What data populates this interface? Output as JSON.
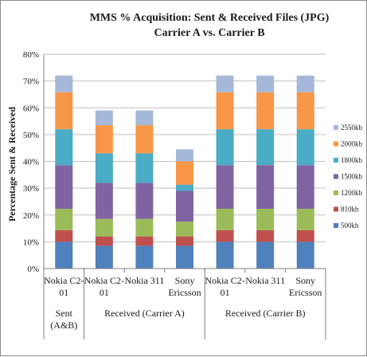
{
  "chart_data": {
    "type": "bar",
    "stacked": true,
    "title_line1": "MMS % Acquisition: Sent & Received Files (JPG)",
    "title_line2": "Carrier A vs. Carrier B",
    "ylabel": "Percentage Sent & Received",
    "ylim": [
      0,
      80
    ],
    "yticks": [
      "0%",
      "10%",
      "20%",
      "30%",
      "40%",
      "50%",
      "60%",
      "70%",
      "80%"
    ],
    "grid": true,
    "legend_position": "right",
    "categories": [
      [
        "Nokia C2-",
        "01"
      ],
      [
        "Nokia C2-",
        "01"
      ],
      [
        "Nokia 311"
      ],
      [
        "Sony",
        "Ericsson"
      ],
      [
        "Nokia C2-",
        "01"
      ],
      [
        "Nokia 311"
      ],
      [
        "Sony",
        "Ericsson"
      ]
    ],
    "groups": [
      {
        "label": [
          "Sent",
          "(A&B)"
        ],
        "start": 0,
        "count": 1
      },
      {
        "label": [
          "Received (Carrier A)"
        ],
        "start": 1,
        "count": 3
      },
      {
        "label": [
          "Received (Carrier B)"
        ],
        "start": 4,
        "count": 3
      }
    ],
    "series": [
      {
        "name": "500kb",
        "color": "#4f81bd",
        "values": [
          10,
          8.5,
          8.5,
          8.5,
          10,
          10,
          10
        ]
      },
      {
        "name": "810kb",
        "color": "#c0504d",
        "values": [
          4.3,
          3.5,
          3.5,
          3.5,
          4.3,
          4.3,
          4.3
        ]
      },
      {
        "name": "1200kb",
        "color": "#9bbb59",
        "values": [
          8,
          6.5,
          6.5,
          5.5,
          8,
          8,
          8
        ]
      },
      {
        "name": "1500kb",
        "color": "#8064a2",
        "values": [
          16.3,
          13.5,
          13.5,
          11.5,
          16.3,
          16.3,
          16.3
        ]
      },
      {
        "name": "1800kb",
        "color": "#4bacc6",
        "values": [
          13.4,
          11,
          11,
          2.3,
          13.4,
          13.4,
          13.4
        ]
      },
      {
        "name": "2000kb",
        "color": "#f79646",
        "values": [
          13.8,
          10.5,
          10.5,
          8.7,
          13.8,
          13.8,
          13.8
        ]
      },
      {
        "name": "2550kb",
        "color": "#a5b8d9",
        "values": [
          6.2,
          5.5,
          5.5,
          4.5,
          6.2,
          6.2,
          6.2
        ]
      }
    ]
  }
}
